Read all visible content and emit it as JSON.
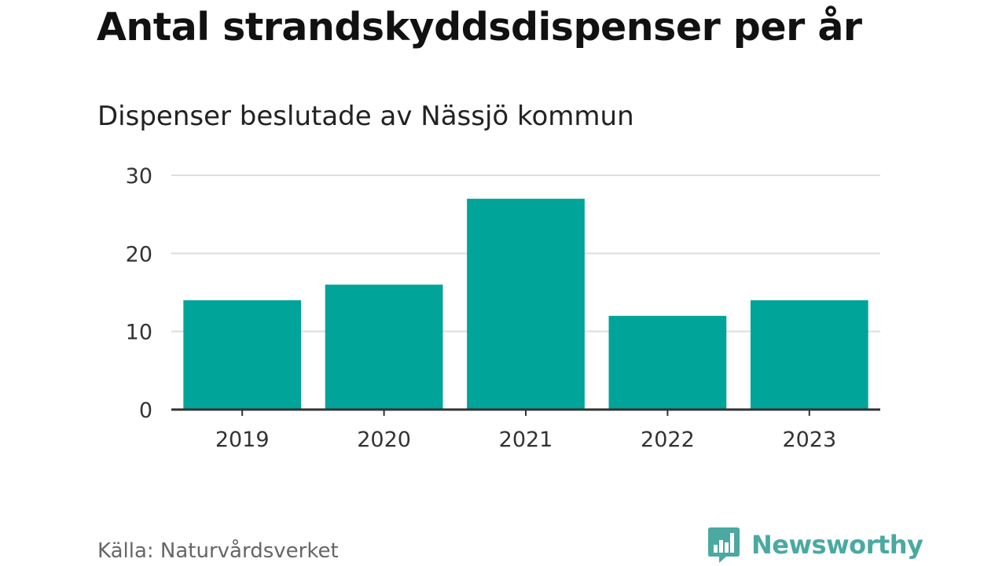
{
  "chart_data": {
    "type": "bar",
    "title": "Antal strandskyddsdispenser per år",
    "subtitle": "Dispenser beslutade av Nässjö kommun",
    "categories": [
      "2019",
      "2020",
      "2021",
      "2022",
      "2023"
    ],
    "values": [
      14,
      16,
      27,
      12,
      14
    ],
    "xlabel": "",
    "ylabel": "",
    "ylim": [
      0,
      30
    ],
    "yticks": [
      "0",
      "10",
      "20",
      "30"
    ],
    "grid": true,
    "bar_color": "#00a499"
  },
  "footer": {
    "source": "Källa: Naturvårdsverket",
    "brand": "Newsworthy",
    "brand_color": "#4aa9a0"
  }
}
